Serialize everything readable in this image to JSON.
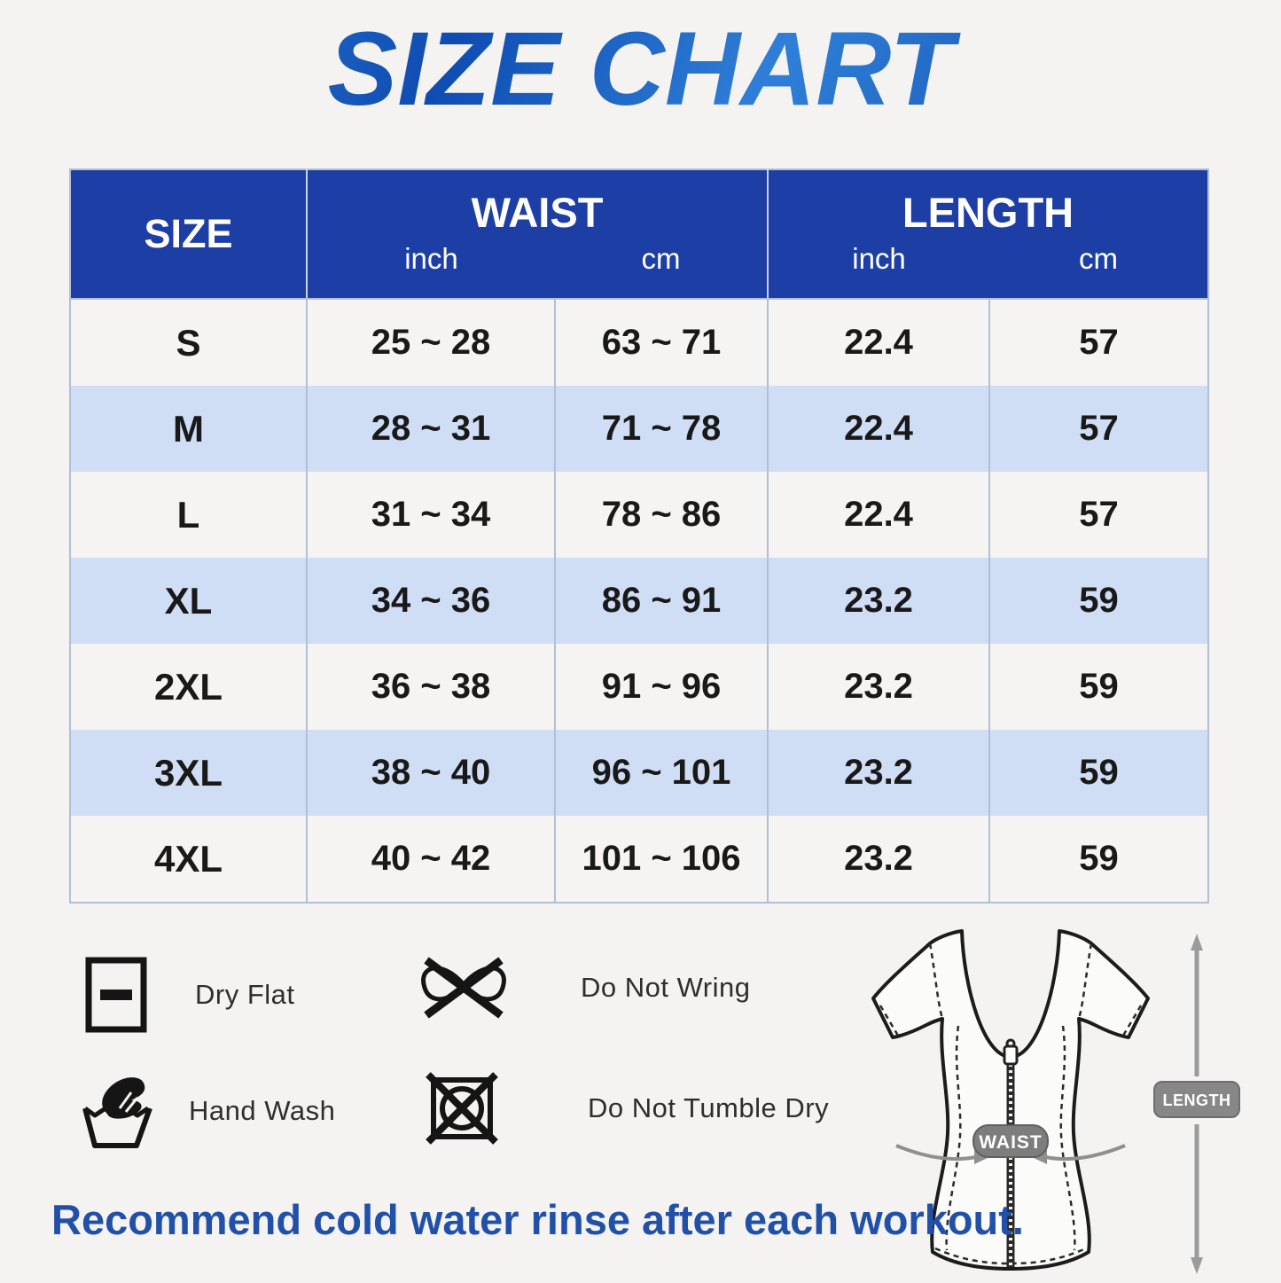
{
  "title": "SIZE CHART",
  "table": {
    "headers": {
      "size": "SIZE",
      "waist": "WAIST",
      "length": "LENGTH",
      "unit_inch": "inch",
      "unit_cm": "cm"
    },
    "rows": [
      {
        "size": "S",
        "waist_inch": "25 ~ 28",
        "waist_cm": "63 ~ 71",
        "length_inch": "22.4",
        "length_cm": "57"
      },
      {
        "size": "M",
        "waist_inch": "28 ~ 31",
        "waist_cm": "71 ~ 78",
        "length_inch": "22.4",
        "length_cm": "57"
      },
      {
        "size": "L",
        "waist_inch": "31 ~ 34",
        "waist_cm": "78 ~ 86",
        "length_inch": "22.4",
        "length_cm": "57"
      },
      {
        "size": "XL",
        "waist_inch": "34 ~ 36",
        "waist_cm": "86 ~ 91",
        "length_inch": "23.2",
        "length_cm": "59"
      },
      {
        "size": "2XL",
        "waist_inch": "36 ~ 38",
        "waist_cm": "91 ~ 96",
        "length_inch": "23.2",
        "length_cm": "59"
      },
      {
        "size": "3XL",
        "waist_inch": "38 ~ 40",
        "waist_cm": "96 ~ 101",
        "length_inch": "23.2",
        "length_cm": "59"
      },
      {
        "size": "4XL",
        "waist_inch": "40 ~ 42",
        "waist_cm": "101 ~ 106",
        "length_inch": "23.2",
        "length_cm": "59"
      }
    ]
  },
  "care_instructions": [
    {
      "icon": "dry-flat-icon",
      "label": "Dry Flat"
    },
    {
      "icon": "do-not-wring-icon",
      "label": "Do Not Wring"
    },
    {
      "icon": "hand-wash-icon",
      "label": "Hand Wash"
    },
    {
      "icon": "do-not-tumble-dry-icon",
      "label": "Do Not Tumble Dry"
    }
  ],
  "diagram": {
    "waist_label": "WAIST",
    "length_label": "LENGTH"
  },
  "footer_note": "Recommend cold water rinse after each workout.",
  "colors": {
    "header_blue": "#1d3ea4",
    "row_light_blue": "#cfddf5",
    "row_off_white": "#f5f4f2",
    "title_blue_light": "#3a8de2",
    "title_blue_dark": "#0b3f9e",
    "footer_blue": "#2150a8",
    "badge_gray": "#808080"
  }
}
